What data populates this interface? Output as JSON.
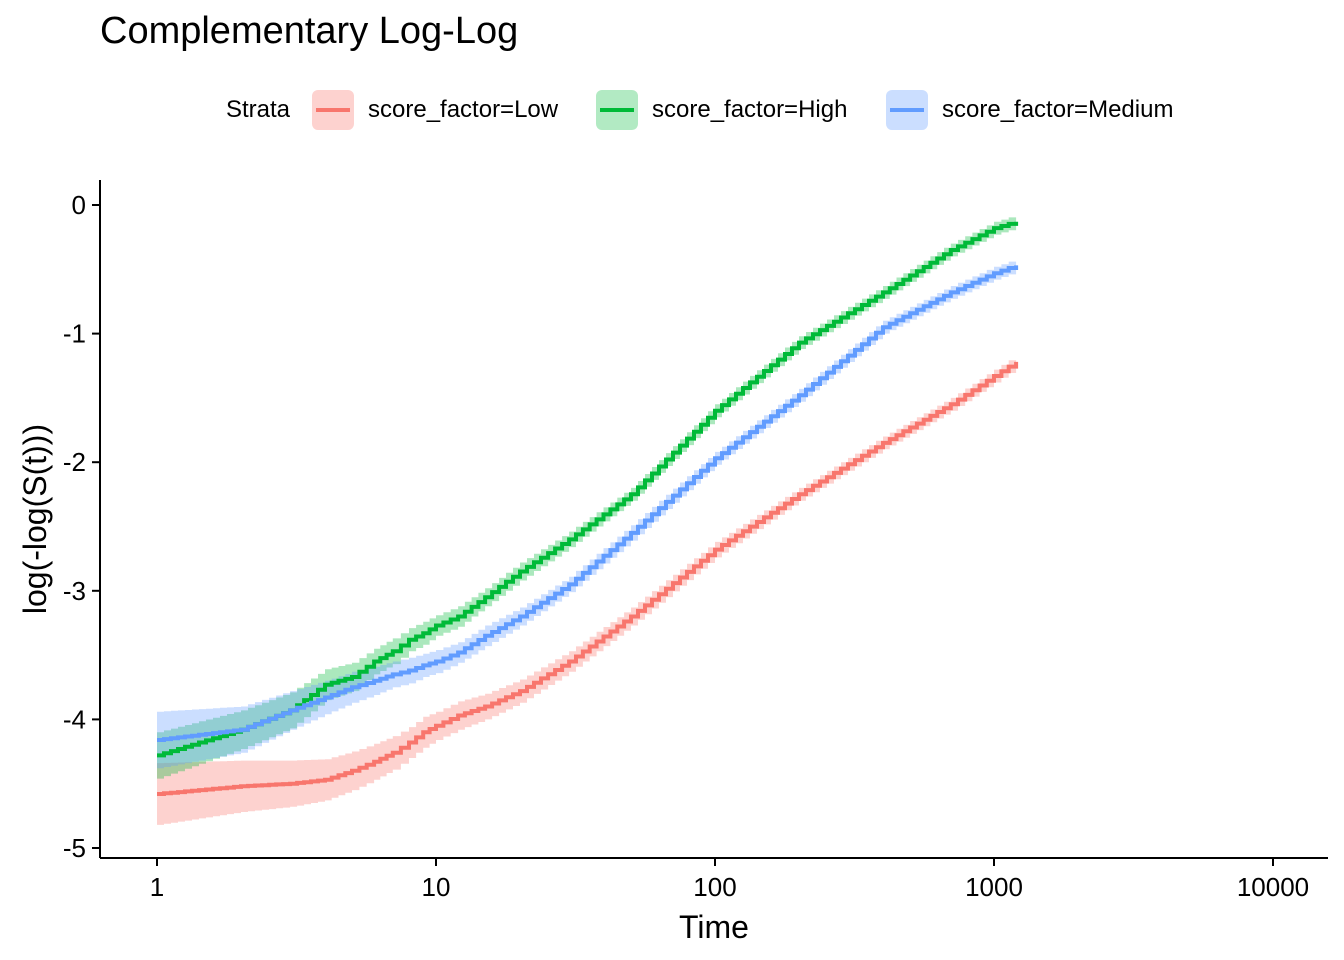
{
  "chart_data": {
    "type": "line",
    "title": "Complementary Log-Log",
    "xlabel": "Time",
    "ylabel": "log(-log(S(t)))",
    "x_scale": "log10",
    "xlim": [
      1,
      10000
    ],
    "ylim": [
      -5,
      0
    ],
    "x_ticks": [
      "1",
      "10",
      "100",
      "1000",
      "10000"
    ],
    "y_ticks": [
      "0",
      "-1",
      "-2",
      "-3",
      "-4",
      "-5"
    ],
    "grid": false,
    "legend": {
      "position": "top",
      "title": "Strata",
      "entries": [
        "score_factor=Low",
        "score_factor=High",
        "score_factor=Medium"
      ]
    },
    "series": [
      {
        "name": "score_factor=Low",
        "color": "#F8766D",
        "x": [
          1,
          2,
          3,
          4,
          5,
          6,
          7,
          8,
          9,
          10,
          12,
          15,
          20,
          30,
          50,
          100,
          200,
          400,
          700,
          1000,
          1200
        ],
        "y": [
          -4.58,
          -4.52,
          -4.5,
          -4.47,
          -4.4,
          -4.33,
          -4.26,
          -4.18,
          -4.1,
          -4.05,
          -3.97,
          -3.9,
          -3.78,
          -3.55,
          -3.2,
          -2.68,
          -2.25,
          -1.85,
          -1.55,
          -1.33,
          -1.22
        ],
        "ci_halfwidth": [
          0.24,
          0.2,
          0.18,
          0.16,
          0.15,
          0.14,
          0.13,
          0.12,
          0.12,
          0.11,
          0.11,
          0.1,
          0.09,
          0.08,
          0.07,
          0.06,
          0.05,
          0.05,
          0.05,
          0.05,
          0.05
        ]
      },
      {
        "name": "score_factor=High",
        "color": "#00BA38",
        "x": [
          1,
          2,
          3,
          4,
          5,
          6,
          7,
          8,
          9,
          10,
          12,
          15,
          20,
          30,
          50,
          100,
          200,
          400,
          700,
          1000,
          1200
        ],
        "y": [
          -4.28,
          -4.08,
          -3.93,
          -3.73,
          -3.67,
          -3.55,
          -3.47,
          -3.38,
          -3.33,
          -3.27,
          -3.2,
          -3.05,
          -2.85,
          -2.6,
          -2.25,
          -1.6,
          -1.07,
          -0.68,
          -0.35,
          -0.18,
          -0.13
        ],
        "ci_halfwidth": [
          0.18,
          0.15,
          0.14,
          0.12,
          0.11,
          0.1,
          0.1,
          0.09,
          0.09,
          0.08,
          0.08,
          0.07,
          0.07,
          0.06,
          0.05,
          0.05,
          0.05,
          0.05,
          0.05,
          0.05,
          0.05
        ]
      },
      {
        "name": "score_factor=Medium",
        "color": "#619CFF",
        "x": [
          1,
          2,
          3,
          4,
          5,
          6,
          7,
          8,
          9,
          10,
          12,
          15,
          20,
          30,
          50,
          100,
          200,
          400,
          700,
          1000,
          1200
        ],
        "y": [
          -4.16,
          -4.08,
          -3.93,
          -3.83,
          -3.75,
          -3.7,
          -3.65,
          -3.62,
          -3.58,
          -3.55,
          -3.48,
          -3.35,
          -3.2,
          -2.95,
          -2.55,
          -1.97,
          -1.48,
          -0.95,
          -0.68,
          -0.53,
          -0.47
        ],
        "ci_halfwidth": [
          0.22,
          0.18,
          0.15,
          0.13,
          0.12,
          0.11,
          0.1,
          0.1,
          0.09,
          0.09,
          0.08,
          0.08,
          0.07,
          0.06,
          0.06,
          0.05,
          0.05,
          0.05,
          0.05,
          0.05,
          0.05
        ]
      }
    ]
  }
}
